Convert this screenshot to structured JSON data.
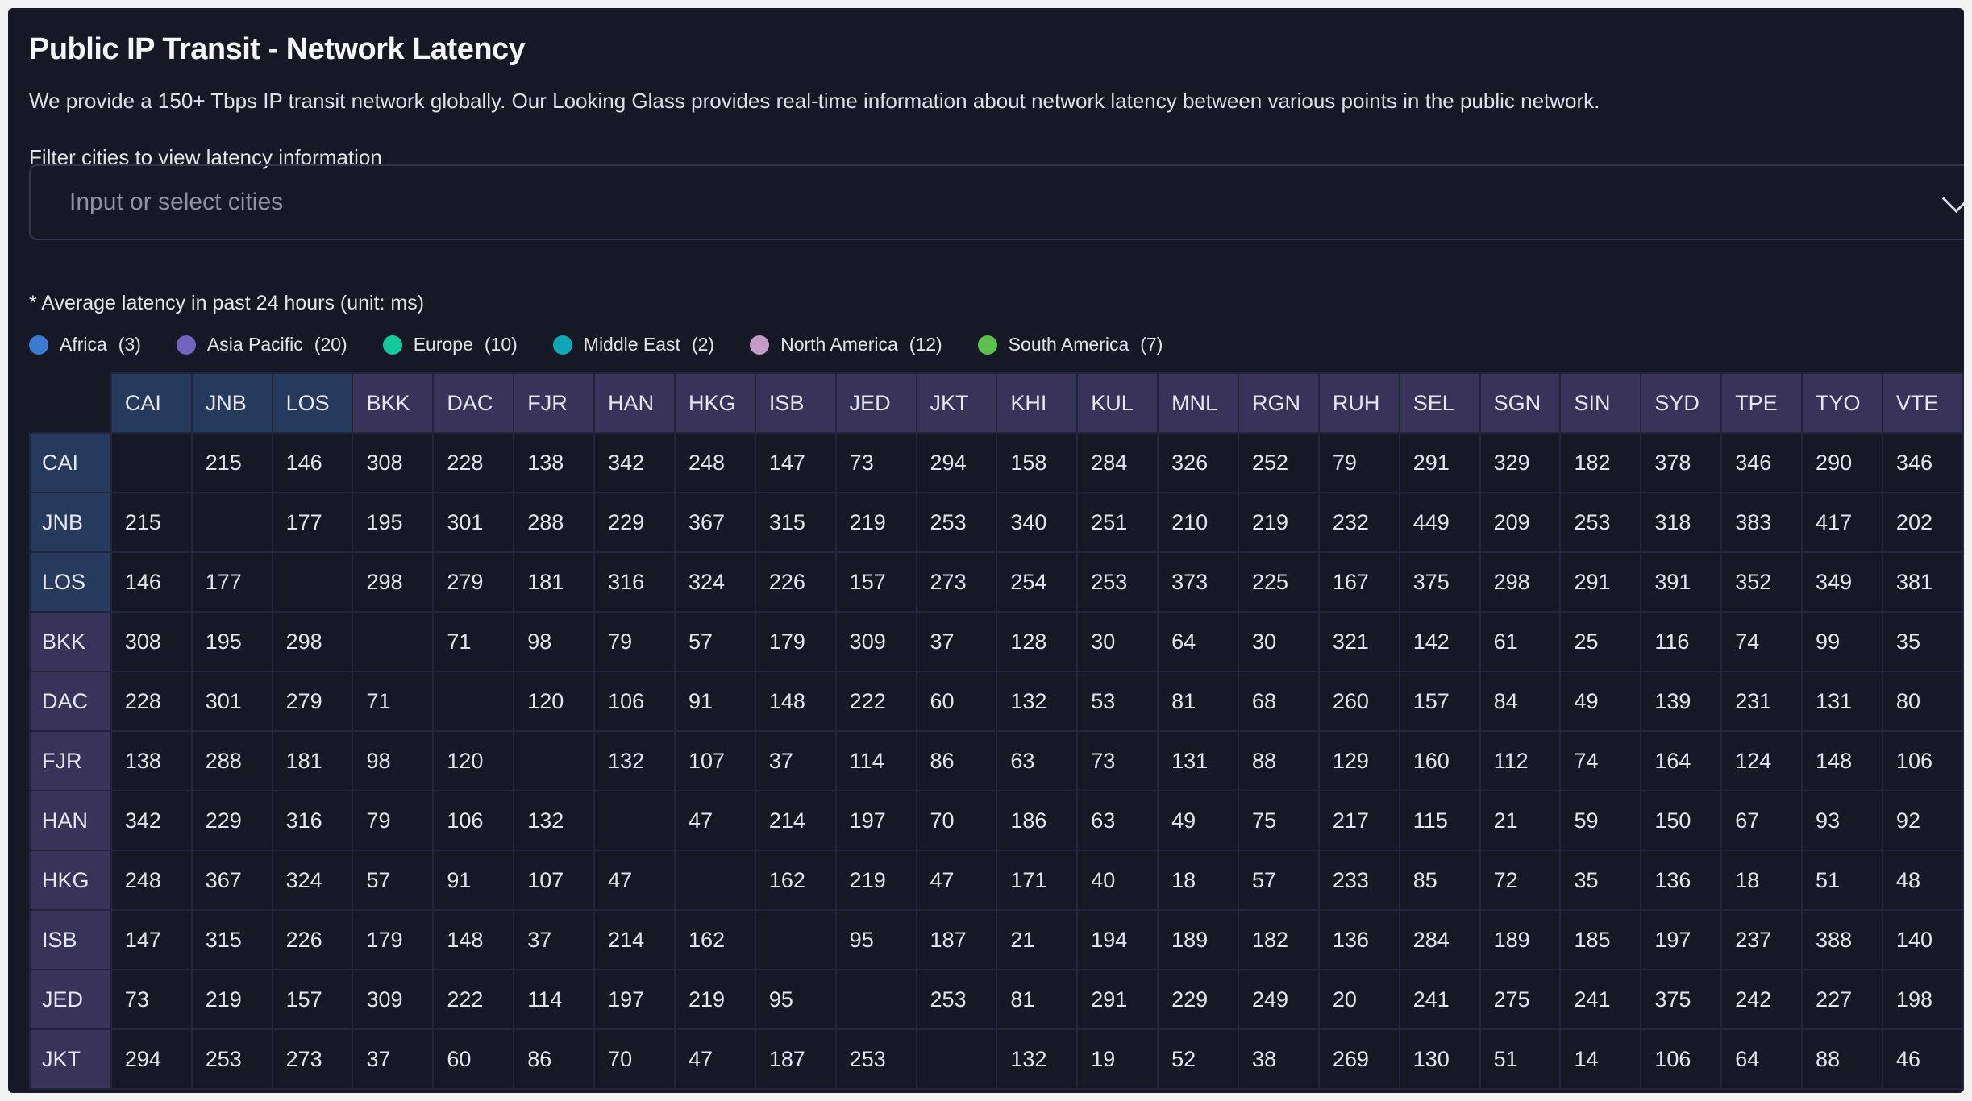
{
  "header": {
    "title": "Public IP Transit - Network Latency",
    "description": "We provide a 150+ Tbps IP transit network globally. Our Looking Glass provides real-time information about network latency between various points in the public network."
  },
  "filter": {
    "label": "Filter cities to view latency information",
    "placeholder": "Input or select cities"
  },
  "note": "* Average latency in past 24 hours (unit: ms)",
  "legend": [
    {
      "name": "Africa",
      "count": "(3)",
      "color": "#3d7bd0",
      "header_bg": "#263a5e"
    },
    {
      "name": "Asia Pacific",
      "count": "(20)",
      "color": "#7462bf",
      "header_bg": "#393359"
    },
    {
      "name": "Europe",
      "count": "(10)",
      "color": "#12c99a",
      "header_bg": "#1d4a44"
    },
    {
      "name": "Middle East",
      "count": "(2)",
      "color": "#0ba7b6",
      "header_bg": "#1b4450"
    },
    {
      "name": "North America",
      "count": "(12)",
      "color": "#c59bc8",
      "header_bg": "#4a3a52"
    },
    {
      "name": "South America",
      "count": "(7)",
      "color": "#5dbf4c",
      "header_bg": "#2f4a30"
    }
  ],
  "columns": [
    {
      "code": "CAI",
      "region": 0
    },
    {
      "code": "JNB",
      "region": 0
    },
    {
      "code": "LOS",
      "region": 0
    },
    {
      "code": "BKK",
      "region": 1
    },
    {
      "code": "DAC",
      "region": 1
    },
    {
      "code": "FJR",
      "region": 1
    },
    {
      "code": "HAN",
      "region": 1
    },
    {
      "code": "HKG",
      "region": 1
    },
    {
      "code": "ISB",
      "region": 1
    },
    {
      "code": "JED",
      "region": 1
    },
    {
      "code": "JKT",
      "region": 1
    },
    {
      "code": "KHI",
      "region": 1
    },
    {
      "code": "KUL",
      "region": 1
    },
    {
      "code": "MNL",
      "region": 1
    },
    {
      "code": "RGN",
      "region": 1
    },
    {
      "code": "RUH",
      "region": 1
    },
    {
      "code": "SEL",
      "region": 1
    },
    {
      "code": "SGN",
      "region": 1
    },
    {
      "code": "SIN",
      "region": 1
    },
    {
      "code": "SYD",
      "region": 1
    },
    {
      "code": "TPE",
      "region": 1
    },
    {
      "code": "TYO",
      "region": 1
    },
    {
      "code": "VTE",
      "region": 1
    }
  ],
  "rows": [
    {
      "code": "CAI",
      "region": 0,
      "values": [
        null,
        215,
        146,
        308,
        228,
        138,
        342,
        248,
        147,
        73,
        294,
        158,
        284,
        326,
        252,
        79,
        291,
        329,
        182,
        378,
        346,
        290,
        346
      ]
    },
    {
      "code": "JNB",
      "region": 0,
      "values": [
        215,
        null,
        177,
        195,
        301,
        288,
        229,
        367,
        315,
        219,
        253,
        340,
        251,
        210,
        219,
        232,
        449,
        209,
        253,
        318,
        383,
        417,
        202
      ]
    },
    {
      "code": "LOS",
      "region": 0,
      "values": [
        146,
        177,
        null,
        298,
        279,
        181,
        316,
        324,
        226,
        157,
        273,
        254,
        253,
        373,
        225,
        167,
        375,
        298,
        291,
        391,
        352,
        349,
        381
      ]
    },
    {
      "code": "BKK",
      "region": 1,
      "values": [
        308,
        195,
        298,
        null,
        71,
        98,
        79,
        57,
        179,
        309,
        37,
        128,
        30,
        64,
        30,
        321,
        142,
        61,
        25,
        116,
        74,
        99,
        35
      ]
    },
    {
      "code": "DAC",
      "region": 1,
      "values": [
        228,
        301,
        279,
        71,
        null,
        120,
        106,
        91,
        148,
        222,
        60,
        132,
        53,
        81,
        68,
        260,
        157,
        84,
        49,
        139,
        231,
        131,
        80
      ]
    },
    {
      "code": "FJR",
      "region": 1,
      "values": [
        138,
        288,
        181,
        98,
        120,
        null,
        132,
        107,
        37,
        114,
        86,
        63,
        73,
        131,
        88,
        129,
        160,
        112,
        74,
        164,
        124,
        148,
        106
      ]
    },
    {
      "code": "HAN",
      "region": 1,
      "values": [
        342,
        229,
        316,
        79,
        106,
        132,
        null,
        47,
        214,
        197,
        70,
        186,
        63,
        49,
        75,
        217,
        115,
        21,
        59,
        150,
        67,
        93,
        92
      ]
    },
    {
      "code": "HKG",
      "region": 1,
      "values": [
        248,
        367,
        324,
        57,
        91,
        107,
        47,
        null,
        162,
        219,
        47,
        171,
        40,
        18,
        57,
        233,
        85,
        72,
        35,
        136,
        18,
        51,
        48
      ]
    },
    {
      "code": "ISB",
      "region": 1,
      "values": [
        147,
        315,
        226,
        179,
        148,
        37,
        214,
        162,
        null,
        95,
        187,
        21,
        194,
        189,
        182,
        136,
        284,
        189,
        185,
        197,
        237,
        388,
        140
      ]
    },
    {
      "code": "JED",
      "region": 1,
      "values": [
        73,
        219,
        157,
        309,
        222,
        114,
        197,
        219,
        95,
        null,
        253,
        81,
        291,
        229,
        249,
        20,
        241,
        275,
        241,
        375,
        242,
        227,
        198
      ]
    },
    {
      "code": "JKT",
      "region": 1,
      "values": [
        294,
        253,
        273,
        37,
        60,
        86,
        70,
        47,
        187,
        253,
        null,
        132,
        19,
        52,
        38,
        269,
        130,
        51,
        14,
        106,
        64,
        88,
        46
      ]
    }
  ]
}
